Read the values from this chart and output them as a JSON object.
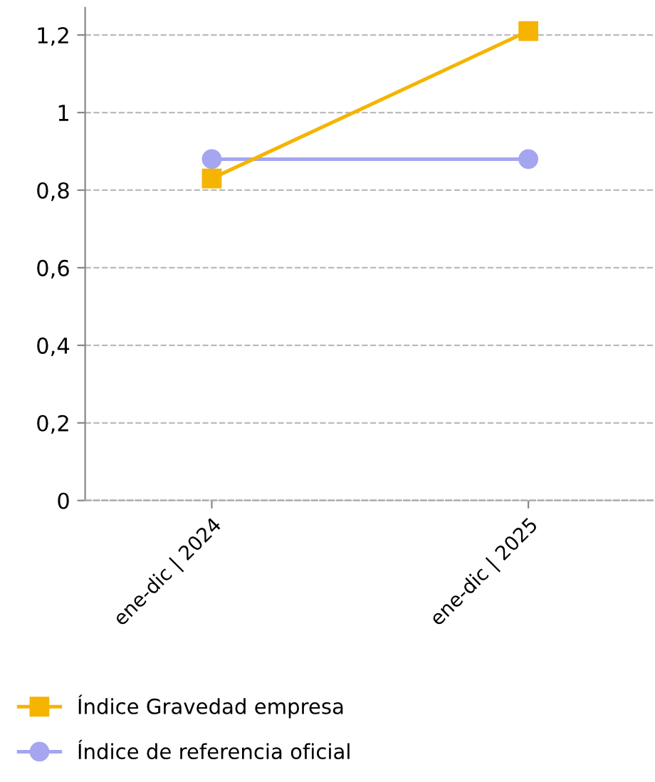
{
  "chart_data": {
    "type": "line",
    "categories": [
      "ene-dic | 2024",
      "ene-dic | 2025"
    ],
    "series": [
      {
        "name": "Índice Gravedad empresa",
        "color": "#f5b400",
        "marker": "square",
        "values": [
          0.83,
          1.21
        ]
      },
      {
        "name": "Índice de referencia oficial",
        "color": "#a5a5f0",
        "marker": "circle",
        "values": [
          0.88,
          0.88
        ]
      }
    ],
    "ylim": [
      0,
      1.27
    ],
    "yticks": [
      {
        "value": 0,
        "label": "0"
      },
      {
        "value": 0.2,
        "label": "0,2"
      },
      {
        "value": 0.4,
        "label": "0,4"
      },
      {
        "value": 0.6,
        "label": "0,6"
      },
      {
        "value": 0.8,
        "label": "0,8"
      },
      {
        "value": 1,
        "label": "1"
      },
      {
        "value": 1.2,
        "label": "1,2"
      }
    ],
    "grid": "y",
    "legend": "bottom",
    "line_style": "solid"
  }
}
